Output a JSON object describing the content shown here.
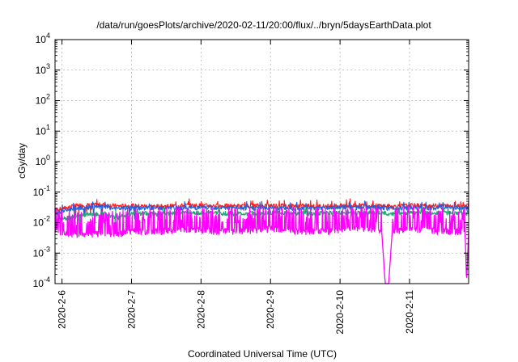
{
  "chart_data": {
    "type": "line",
    "title": "/data/run/goesPlots/archive/2020-02-11/20:00/flux/../bryn/5daysEarthData.plot",
    "xlabel": "Coordinated Universal Time (UTC)",
    "ylabel": "cGy/day",
    "y_scale": "log",
    "ylim": [
      0.0001,
      10000
    ],
    "xlim": [
      -0.1,
      5.85
    ],
    "x_unit": "days since 2020-2-6 00:00 UTC",
    "grid": true,
    "legend": "none",
    "y_ticks": [
      {
        "base": "10",
        "exp": "4",
        "value": 10000
      },
      {
        "base": "10",
        "exp": "3",
        "value": 1000
      },
      {
        "base": "10",
        "exp": "2",
        "value": 100
      },
      {
        "base": "10",
        "exp": "1",
        "value": 10
      },
      {
        "base": "10",
        "exp": "0",
        "value": 1
      },
      {
        "base": "10",
        "exp": "-1",
        "value": 0.1
      },
      {
        "base": "10",
        "exp": "-2",
        "value": 0.01
      },
      {
        "base": "10",
        "exp": "-3",
        "value": 0.001
      },
      {
        "base": "10",
        "exp": "-4",
        "value": 0.0001
      }
    ],
    "x_ticks": [
      {
        "label": "2020-2-6",
        "value": 0
      },
      {
        "label": "2020-2-7",
        "value": 1
      },
      {
        "label": "2020-2-8",
        "value": 2
      },
      {
        "label": "2020-2-9",
        "value": 3
      },
      {
        "label": "2020-2-10",
        "value": 4
      },
      {
        "label": "2020-2-11",
        "value": 5
      }
    ],
    "series": [
      {
        "color": "#ff1a1a",
        "approx_level": 0.035,
        "x": [
          -0.1,
          0.2,
          0.6,
          0.8,
          1.0,
          1.4,
          1.8,
          2.2,
          2.6,
          3.0,
          3.4,
          3.8,
          4.2,
          4.6,
          4.75,
          5.0,
          5.4,
          5.85
        ],
        "values": [
          0.025,
          0.035,
          0.038,
          0.034,
          0.035,
          0.033,
          0.036,
          0.035,
          0.034,
          0.036,
          0.035,
          0.034,
          0.036,
          0.035,
          0.033,
          0.036,
          0.035,
          0.034
        ]
      },
      {
        "color": "#1f5fe0",
        "approx_level": 0.03,
        "x": [
          -0.1,
          0.2,
          0.6,
          0.8,
          1.0,
          1.4,
          1.8,
          2.2,
          2.6,
          3.0,
          3.4,
          3.8,
          4.2,
          4.6,
          4.75,
          5.0,
          5.4,
          5.85
        ],
        "values": [
          0.02,
          0.03,
          0.032,
          0.028,
          0.03,
          0.029,
          0.03,
          0.031,
          0.029,
          0.03,
          0.029,
          0.03,
          0.031,
          0.03,
          0.029,
          0.03,
          0.03,
          0.029
        ]
      },
      {
        "color": "#1aa86e",
        "approx_level": 0.02,
        "x": [
          -0.1,
          0.2,
          0.6,
          0.8,
          1.0,
          1.4,
          1.8,
          2.2,
          2.6,
          3.0,
          3.4,
          3.8,
          4.2,
          4.6,
          4.75,
          5.0,
          5.4,
          5.85
        ],
        "values": [
          0.012,
          0.016,
          0.02,
          0.014,
          0.02,
          0.019,
          0.021,
          0.02,
          0.019,
          0.021,
          0.02,
          0.02,
          0.021,
          0.02,
          0.019,
          0.021,
          0.02,
          0.02
        ]
      },
      {
        "color": "#ff00ff",
        "approx_level": 0.005,
        "x": [
          -0.1,
          0.2,
          0.6,
          0.8,
          1.0,
          1.4,
          1.8,
          2.2,
          2.6,
          3.0,
          3.4,
          3.8,
          4.2,
          4.6,
          4.65,
          4.7,
          4.75,
          5.0,
          5.4,
          5.8,
          5.82,
          5.85
        ],
        "values": [
          0.005,
          0.004,
          0.004,
          0.004,
          0.005,
          0.005,
          0.006,
          0.005,
          0.005,
          0.006,
          0.005,
          0.005,
          0.006,
          0.005,
          0.0001,
          0.0001,
          0.005,
          0.006,
          0.005,
          0.005,
          0.0001,
          0.005
        ]
      }
    ]
  }
}
